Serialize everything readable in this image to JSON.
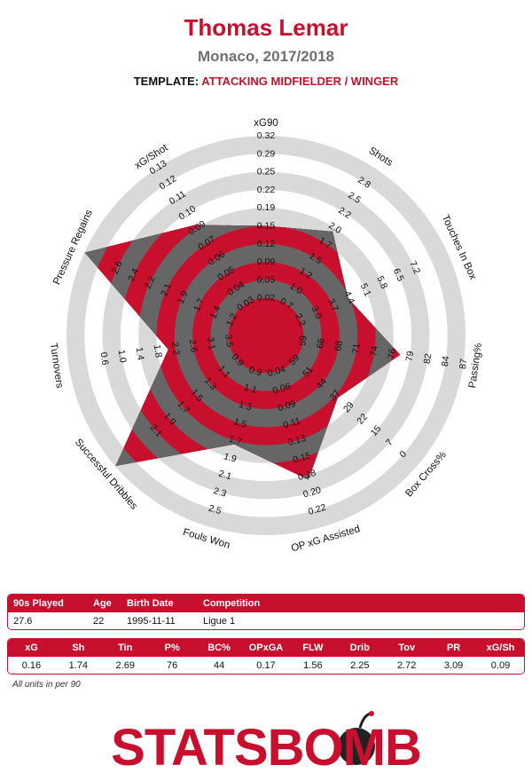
{
  "header": {
    "player": "Thomas Lemar",
    "team_season": "Monaco, 2017/2018",
    "template_label": "TEMPLATE:",
    "template_value": "ATTACKING MIDFIELDER / WINGER"
  },
  "chart_data": {
    "type": "radar",
    "rings": 5,
    "fill_color": "#c8102e",
    "overlay_color": "#666666",
    "ring_color": "#d9d9d9",
    "axes": [
      {
        "label": "xG90",
        "ticks": [
          "0.02",
          "0.05",
          "0.09",
          "0.12",
          "0.15",
          "0.19",
          "0.22",
          "0.25",
          "0.29",
          "0.32"
        ],
        "value": 0.16,
        "min": -0.016,
        "max": 0.336
      },
      {
        "label": "Shots",
        "ticks": [
          "0.7",
          "1.0",
          "1.2",
          "1.5",
          "1.7",
          "2.0",
          "2.2",
          "2.5",
          "2.8"
        ],
        "value": 1.74,
        "min": -0.048,
        "max": 3.05
      },
      {
        "label": "Touches In Box",
        "ticks": [
          "2.2",
          "3.0",
          "3.7",
          "4.4",
          "5.1",
          "5.8",
          "6.5",
          "7.2"
        ],
        "value": 2.69,
        "min": -0.68,
        "max": 7.92
      },
      {
        "label": "Passing%",
        "ticks": [
          "59",
          "66",
          "68",
          "71",
          "74",
          "76",
          "79",
          "82",
          "84",
          "87"
        ],
        "value": 76,
        "min": 51.5,
        "max": 89.5
      },
      {
        "label": "Box Cross%",
        "ticks": [
          "59",
          "51",
          "44",
          "37",
          "29",
          "22",
          "15",
          "7",
          "0"
        ],
        "value": 44,
        "min": 81,
        "max": -7.3
      },
      {
        "label": "OP xG Assisted",
        "ticks": [
          "0.04",
          "0.06",
          "0.09",
          "0.11",
          "0.13",
          "0.15",
          "0.18",
          "0.20",
          "0.22"
        ],
        "value": 0.17,
        "min": -0.024,
        "max": 0.243
      },
      {
        "label": "Fouls Won",
        "ticks": [
          "0.9",
          "1.1",
          "1.3",
          "1.5",
          "1.7",
          "1.9",
          "2.1",
          "2.3",
          "2.5"
        ],
        "value": 1.56,
        "min": 0.32,
        "max": 2.7
      },
      {
        "label": "Successful Dribbles",
        "ticks": [
          "0.9",
          "1.1",
          "1.3",
          "1.5",
          "1.7",
          "1.9",
          "2.1"
        ],
        "value": 2.25,
        "min": 0.5,
        "max": 2.24
      },
      {
        "label": "Turnovers",
        "ticks": [
          "3.5",
          "3.1",
          "2.6",
          "2.2",
          "1.8",
          "1.4",
          "1.0",
          "0.6"
        ],
        "value": 2.72,
        "min": 4.7,
        "max": 0.2
      },
      {
        "label": "Pressure Regains",
        "ticks": [
          "1.2",
          "1.4",
          "1.7",
          "1.9",
          "2.1",
          "2.2",
          "2.4",
          "2.6"
        ],
        "value": 3.09,
        "min": 0.6,
        "max": 2.8
      },
      {
        "label": "xG/Shot",
        "ticks": [
          "0.03",
          "0.04",
          "0.05",
          "0.06",
          "0.07",
          "0.09",
          "0.10",
          "0.11",
          "0.12",
          "0.13"
        ],
        "value": 0.09,
        "min": 0.005,
        "max": 0.142
      }
    ]
  },
  "info_table": {
    "headers": [
      "90s Played",
      "Age",
      "Birth Date",
      "Competition"
    ],
    "values": [
      "27.6",
      "22",
      "1995-11-11",
      "Ligue 1"
    ]
  },
  "stats_table": {
    "headers": [
      "xG",
      "Sh",
      "Tin",
      "P%",
      "BC%",
      "OPxGA",
      "FLW",
      "Drib",
      "Tov",
      "PR",
      "xG/Sh"
    ],
    "values": [
      "0.16",
      "1.74",
      "2.69",
      "76",
      "44",
      "0.17",
      "1.56",
      "2.25",
      "2.72",
      "3.09",
      "0.09"
    ]
  },
  "footnote": "All units in per 90",
  "logo": {
    "text": "STATSBOMB",
    "color": "#c8102e"
  }
}
